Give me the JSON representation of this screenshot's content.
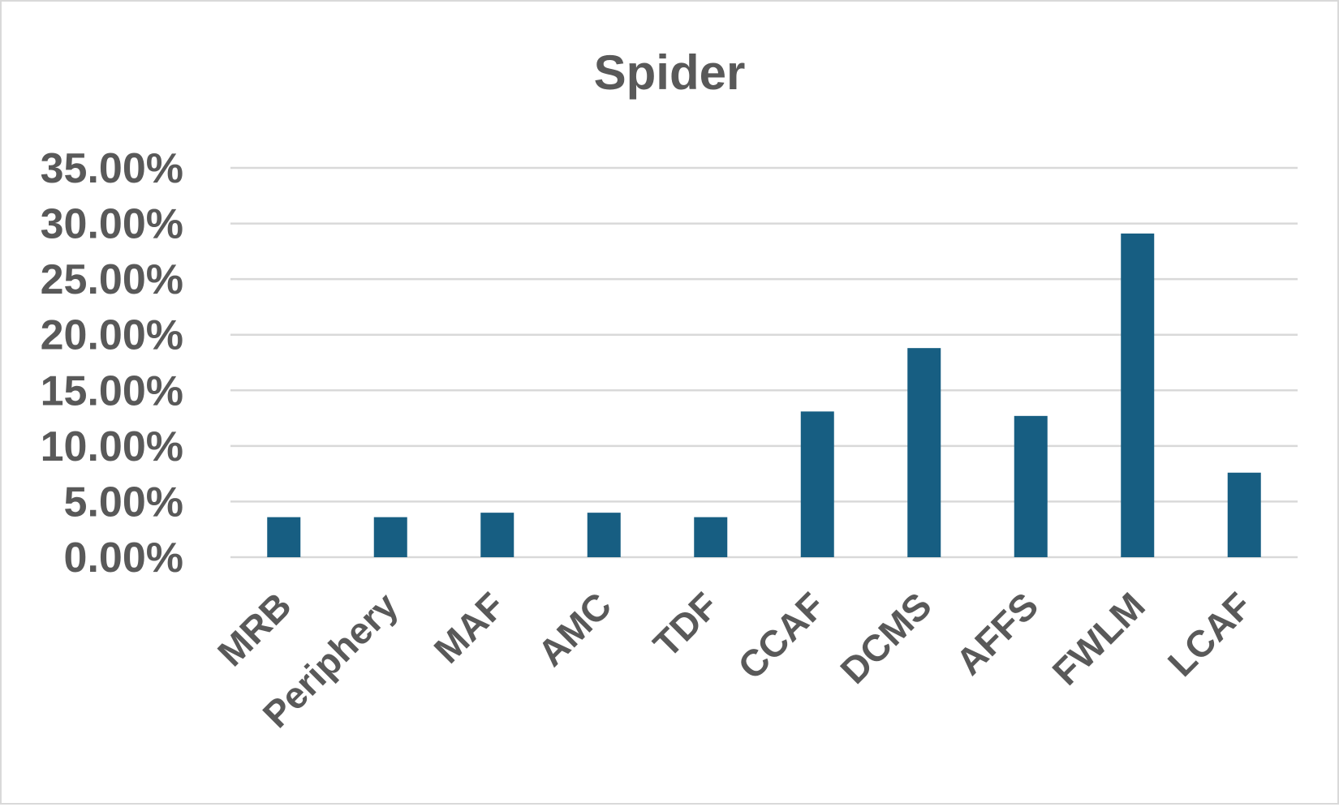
{
  "chart_data": {
    "type": "bar",
    "title": "Spider",
    "xlabel": "",
    "ylabel": "",
    "categories": [
      "MRB",
      "Periphery",
      "MAF",
      "AMC",
      "TDF",
      "CCAF",
      "DCMS",
      "AFFS",
      "FWLM",
      "LCAF"
    ],
    "values": [
      3.6,
      3.6,
      4.0,
      4.0,
      3.6,
      13.1,
      18.8,
      12.7,
      29.1,
      7.6
    ],
    "value_format": "percent",
    "ylim": [
      0,
      35
    ],
    "yticks": [
      "0.00%",
      "5.00%",
      "10.00%",
      "15.00%",
      "20.00%",
      "25.00%",
      "30.00%",
      "35.00%"
    ],
    "grid": true,
    "legend": "none",
    "colors": {
      "bar": "#175e82",
      "grid": "#d9d9d9",
      "text": "#595959"
    }
  }
}
